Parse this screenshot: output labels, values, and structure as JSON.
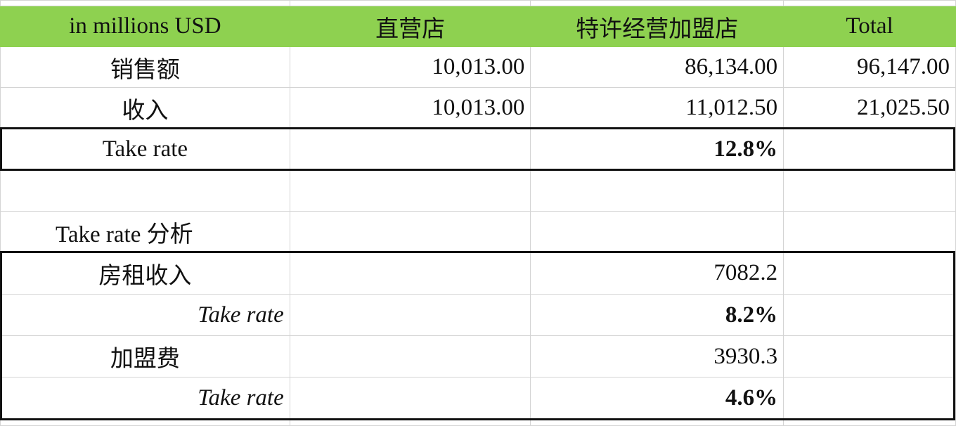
{
  "header": {
    "label": "in millions USD",
    "col1": "直营店",
    "col2": "特许经营加盟店",
    "col3": "Total"
  },
  "rows": [
    {
      "label": "销售额",
      "col1": "10,013.00",
      "col2": "86,134.00",
      "col3": "96,147.00"
    },
    {
      "label": "收入",
      "col1": "10,013.00",
      "col2": "11,012.50",
      "col3": "21,025.50"
    },
    {
      "label": "Take rate",
      "col1": "",
      "col2": "12.8%",
      "col3": ""
    }
  ],
  "analysis": {
    "title": "Take rate 分析",
    "rows": [
      {
        "label": "房租收入",
        "col2": "7082.2"
      },
      {
        "label": "Take rate",
        "col2": "8.2%"
      },
      {
        "label": "加盟费",
        "col2": "3930.3"
      },
      {
        "label": "Take rate",
        "col2": "4.6%"
      }
    ]
  },
  "colors": {
    "header_bg": "#8ed150"
  }
}
